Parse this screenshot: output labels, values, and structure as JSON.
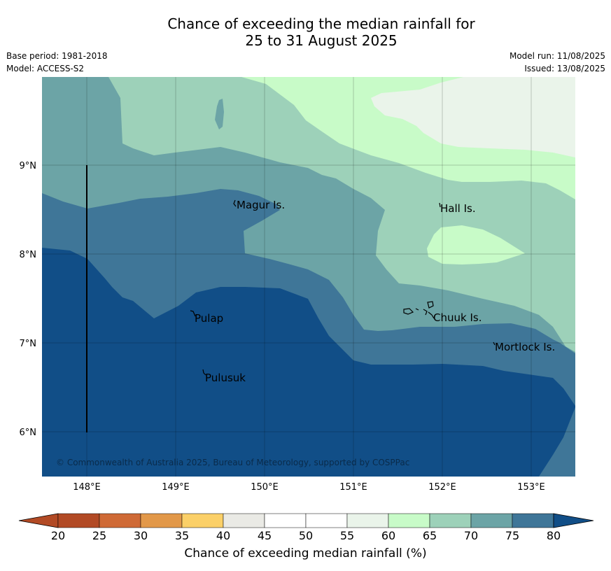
{
  "title": {
    "line1": "Chance of exceeding the median rainfall for",
    "line2": "25 to 31 August 2025"
  },
  "meta": {
    "base_period": "Base period: 1981-2018",
    "model": "Model: ACCESS-S2",
    "model_run": "Model run: 11/08/2025",
    "issued": "Issued: 13/08/2025"
  },
  "map": {
    "lon_ticks": [
      "148°E",
      "149°E",
      "150°E",
      "151°E",
      "152°E",
      "153°E"
    ],
    "lat_ticks": [
      "9°N",
      "8°N",
      "7°N",
      "6°N"
    ],
    "places": [
      "Magur Is.",
      "Hall Is.",
      "Pulap",
      "Chuuk Is.",
      "Mortlock Is.",
      "Pulusuk"
    ],
    "copyright": "© Commonwealth of Australia 2025, Bureau of Meteorology, supported by COSPPac"
  },
  "colorbar": {
    "ticks": [
      "20",
      "25",
      "30",
      "35",
      "40",
      "45",
      "50",
      "55",
      "60",
      "65",
      "70",
      "75",
      "80"
    ],
    "colors": [
      "#b24a25",
      "#cf6a36",
      "#e29849",
      "#fbd068",
      "#eaeae5",
      "#ffffff",
      "#ffffff",
      "#eaf4ea",
      "#c8fbc8",
      "#9dd1b9",
      "#6ca4a6",
      "#3f7698",
      "#114e87"
    ],
    "label": "Chance of exceeding median rainfall (%)"
  }
}
